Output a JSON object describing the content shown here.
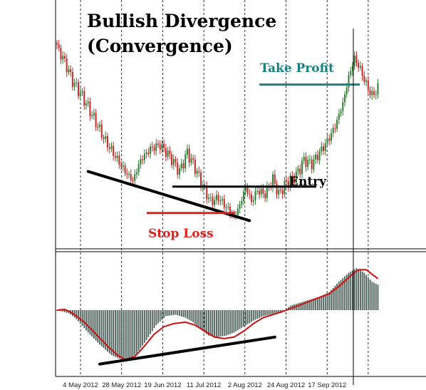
{
  "title_lines": [
    "Bullish Divergence",
    "(Convergence)"
  ],
  "annotations": {
    "take_profit": "Take Profit",
    "entry": "Entry",
    "stop_loss": "Stop Loss"
  },
  "colors": {
    "bull_candle": "#2e7d32",
    "bear_candle": "#c62828",
    "histogram": "#4a5e58",
    "signal_line": "#d01010",
    "take_profit": "#1a8080",
    "stop_loss": "#e0201c",
    "entry": "#000000",
    "trendline": "#000000"
  },
  "chart_data": [
    {
      "type": "candlestick",
      "title": "Bullish Divergence (Convergence)",
      "x_tick_labels": [
        "4 May 2012",
        "28 May 2012",
        "19 Jun 2012",
        "11 Jul 2012",
        "2 Aug 2012",
        "24 Aug 2012",
        "17 Sep 2012"
      ],
      "close_path": [
        {
          "x": 0,
          "y": 0.96
        },
        {
          "x": 4,
          "y": 0.88
        },
        {
          "x": 8,
          "y": 0.78
        },
        {
          "x": 14,
          "y": 0.68
        },
        {
          "x": 19,
          "y": 0.58
        },
        {
          "x": 25,
          "y": 0.46
        },
        {
          "x": 30,
          "y": 0.38
        },
        {
          "x": 35,
          "y": 0.3
        },
        {
          "x": 39,
          "y": 0.25
        },
        {
          "x": 43,
          "y": 0.36
        },
        {
          "x": 48,
          "y": 0.42
        },
        {
          "x": 53,
          "y": 0.44
        },
        {
          "x": 58,
          "y": 0.38
        },
        {
          "x": 63,
          "y": 0.3
        },
        {
          "x": 67,
          "y": 0.4
        },
        {
          "x": 71,
          "y": 0.32
        },
        {
          "x": 75,
          "y": 0.22
        },
        {
          "x": 79,
          "y": 0.14
        },
        {
          "x": 83,
          "y": 0.16
        },
        {
          "x": 88,
          "y": 0.1
        },
        {
          "x": 91,
          "y": 0.06
        },
        {
          "x": 94,
          "y": 0.12
        },
        {
          "x": 97,
          "y": 0.22
        },
        {
          "x": 100,
          "y": 0.14
        },
        {
          "x": 103,
          "y": 0.2
        },
        {
          "x": 107,
          "y": 0.18
        },
        {
          "x": 111,
          "y": 0.26
        },
        {
          "x": 114,
          "y": 0.18
        },
        {
          "x": 118,
          "y": 0.24
        },
        {
          "x": 123,
          "y": 0.28
        },
        {
          "x": 127,
          "y": 0.36
        },
        {
          "x": 131,
          "y": 0.34
        },
        {
          "x": 135,
          "y": 0.4
        },
        {
          "x": 139,
          "y": 0.46
        },
        {
          "x": 143,
          "y": 0.54
        },
        {
          "x": 147,
          "y": 0.66
        },
        {
          "x": 150,
          "y": 0.8
        },
        {
          "x": 153,
          "y": 0.9
        },
        {
          "x": 156,
          "y": 0.84
        },
        {
          "x": 159,
          "y": 0.76
        },
        {
          "x": 162,
          "y": 0.7
        },
        {
          "x": 165,
          "y": 0.74
        }
      ],
      "stop_loss_level": 0.08,
      "entry_level": 0.22,
      "take_profit_level": 0.76,
      "trendline": {
        "x0": 16,
        "y0": 0.3,
        "x1": 99,
        "y1": 0.04
      }
    },
    {
      "type": "bar",
      "name": "oscillator",
      "histogram_path": [
        {
          "x": 0,
          "y": 0
        },
        {
          "x": 6,
          "y": -0.04
        },
        {
          "x": 10,
          "y": -0.12
        },
        {
          "x": 16,
          "y": -0.3
        },
        {
          "x": 22,
          "y": -0.46
        },
        {
          "x": 28,
          "y": -0.6
        },
        {
          "x": 33,
          "y": -0.66
        },
        {
          "x": 37,
          "y": -0.66
        },
        {
          "x": 41,
          "y": -0.58
        },
        {
          "x": 46,
          "y": -0.4
        },
        {
          "x": 51,
          "y": -0.2
        },
        {
          "x": 56,
          "y": -0.08
        },
        {
          "x": 61,
          "y": -0.06
        },
        {
          "x": 66,
          "y": -0.1
        },
        {
          "x": 70,
          "y": -0.16
        },
        {
          "x": 74,
          "y": -0.26
        },
        {
          "x": 78,
          "y": -0.34
        },
        {
          "x": 82,
          "y": -0.36
        },
        {
          "x": 87,
          "y": -0.34
        },
        {
          "x": 91,
          "y": -0.3
        },
        {
          "x": 96,
          "y": -0.22
        },
        {
          "x": 101,
          "y": -0.14
        },
        {
          "x": 106,
          "y": -0.08
        },
        {
          "x": 111,
          "y": -0.05
        },
        {
          "x": 116,
          "y": -0.02
        },
        {
          "x": 120,
          "y": 0.06
        },
        {
          "x": 125,
          "y": 0.1
        },
        {
          "x": 130,
          "y": 0.14
        },
        {
          "x": 135,
          "y": 0.18
        },
        {
          "x": 140,
          "y": 0.24
        },
        {
          "x": 145,
          "y": 0.38
        },
        {
          "x": 150,
          "y": 0.5
        },
        {
          "x": 154,
          "y": 0.56
        },
        {
          "x": 158,
          "y": 0.5
        },
        {
          "x": 162,
          "y": 0.38
        },
        {
          "x": 165,
          "y": 0.34
        }
      ],
      "signal_path": [
        {
          "x": 0,
          "y": 0
        },
        {
          "x": 4,
          "y": 0.01
        },
        {
          "x": 8,
          "y": -0.04
        },
        {
          "x": 14,
          "y": -0.16
        },
        {
          "x": 20,
          "y": -0.32
        },
        {
          "x": 26,
          "y": -0.48
        },
        {
          "x": 31,
          "y": -0.6
        },
        {
          "x": 35,
          "y": -0.66
        },
        {
          "x": 40,
          "y": -0.62
        },
        {
          "x": 45,
          "y": -0.48
        },
        {
          "x": 50,
          "y": -0.32
        },
        {
          "x": 55,
          "y": -0.22
        },
        {
          "x": 60,
          "y": -0.18
        },
        {
          "x": 66,
          "y": -0.16
        },
        {
          "x": 71,
          "y": -0.2
        },
        {
          "x": 76,
          "y": -0.28
        },
        {
          "x": 81,
          "y": -0.36
        },
        {
          "x": 86,
          "y": -0.38
        },
        {
          "x": 91,
          "y": -0.36
        },
        {
          "x": 96,
          "y": -0.28
        },
        {
          "x": 101,
          "y": -0.18
        },
        {
          "x": 106,
          "y": -0.1
        },
        {
          "x": 111,
          "y": -0.06
        },
        {
          "x": 116,
          "y": -0.02
        },
        {
          "x": 122,
          "y": 0.04
        },
        {
          "x": 128,
          "y": 0.1
        },
        {
          "x": 134,
          "y": 0.16
        },
        {
          "x": 140,
          "y": 0.22
        },
        {
          "x": 146,
          "y": 0.34
        },
        {
          "x": 151,
          "y": 0.46
        },
        {
          "x": 155,
          "y": 0.54
        },
        {
          "x": 159,
          "y": 0.54
        },
        {
          "x": 163,
          "y": 0.46
        },
        {
          "x": 165,
          "y": 0.42
        }
      ],
      "trendline": {
        "x0": 22,
        "y0": -0.72,
        "x1": 112,
        "y1": -0.36
      }
    }
  ]
}
